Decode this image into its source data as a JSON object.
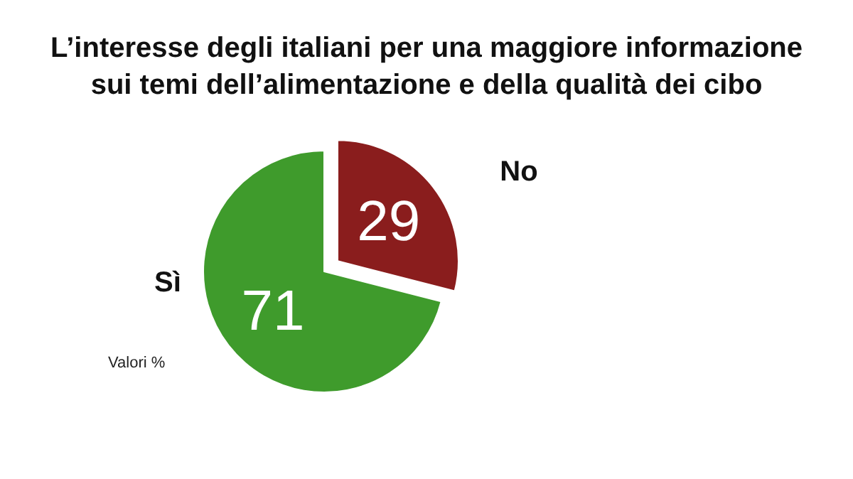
{
  "chart_data": {
    "type": "pie",
    "title": "L’interesse degli italiani per una maggiore informazione\nsui temi dell’alimentazione e della qualità dei cibo",
    "categories": [
      "Sì",
      "No"
    ],
    "values": [
      71,
      29
    ],
    "colors": [
      "#3f9b2c",
      "#8a1d1d"
    ],
    "data_labels": true,
    "annotations": [
      "Valori %"
    ]
  }
}
